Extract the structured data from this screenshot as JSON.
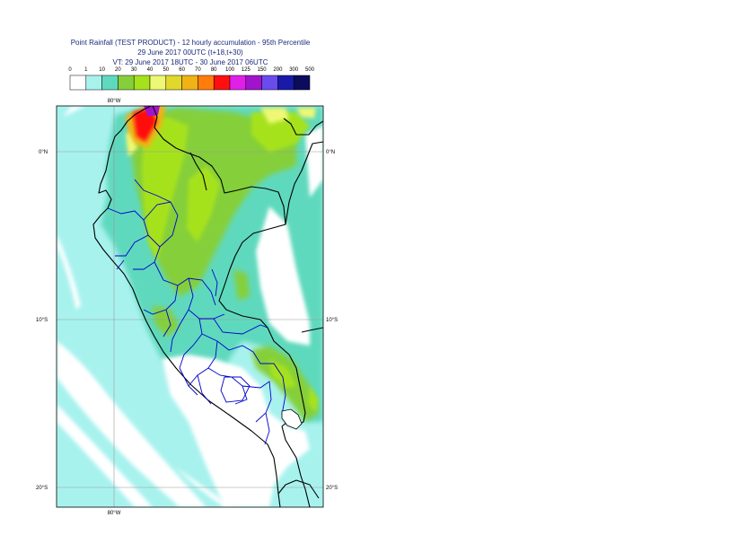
{
  "title": {
    "line1": "Point Rainfall (TEST PRODUCT) - 12 hourly accumulation - 95th Percentile",
    "line2": "29 June 2017 00UTC (t+18,t+30)",
    "line3": "VT: 29 June 2017 18UTC - 30 June 2017 06UTC"
  },
  "legend": {
    "thresholds": [
      "0",
      "1",
      "10",
      "20",
      "30",
      "40",
      "50",
      "60",
      "70",
      "80",
      "100",
      "125",
      "150",
      "200",
      "300",
      "500"
    ],
    "colors": [
      "#ffffff",
      "#a8f2ee",
      "#5fd9bd",
      "#85cf3a",
      "#a6e21c",
      "#eef874",
      "#e0d82a",
      "#f0b214",
      "#ff7d0a",
      "#ff1010",
      "#e020e8",
      "#a214cc",
      "#6a4cec",
      "#1a1aa8",
      "#0c0c5c"
    ]
  },
  "axes": {
    "lon_top": "80°W",
    "lon_bottom": "80°W",
    "lat_labels": [
      "0°N",
      "10°S",
      "20°S"
    ]
  },
  "map": {
    "ocean_color": "#a8f2ee",
    "land_low_color": "#5fd9bd",
    "rain_mid_color": "#85cf3a",
    "rain_high_color": "#a6e21c",
    "rain_peak_color": "#ff1010",
    "rain_extreme_color": "#a214cc",
    "border_color": "#000000",
    "admin_color": "#0000cc",
    "grid_color": "#9a9a9a"
  }
}
